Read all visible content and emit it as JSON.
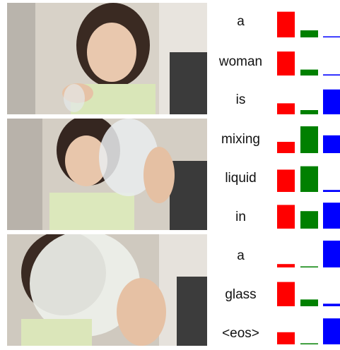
{
  "chart_data": {
    "type": "bar",
    "description_note": "",
    "categories": [
      "a",
      "woman",
      "is",
      "mixing",
      "liquid",
      "in",
      "a",
      "glass",
      "<eos>"
    ],
    "series": [
      {
        "color": "#ff0000",
        "values": [
          0.91,
          0.85,
          0.39,
          0.4,
          0.79,
          0.84,
          0.12,
          0.86,
          0.43
        ]
      },
      {
        "color": "#008000",
        "values": [
          0.25,
          0.21,
          0.15,
          0.95,
          0.91,
          0.62,
          0.03,
          0.24,
          0.03
        ]
      },
      {
        "color": "#0000ff",
        "values": [
          0.03,
          0.04,
          0.88,
          0.63,
          0.07,
          0.92,
          0.95,
          0.09,
          0.92
        ]
      }
    ]
  }
}
